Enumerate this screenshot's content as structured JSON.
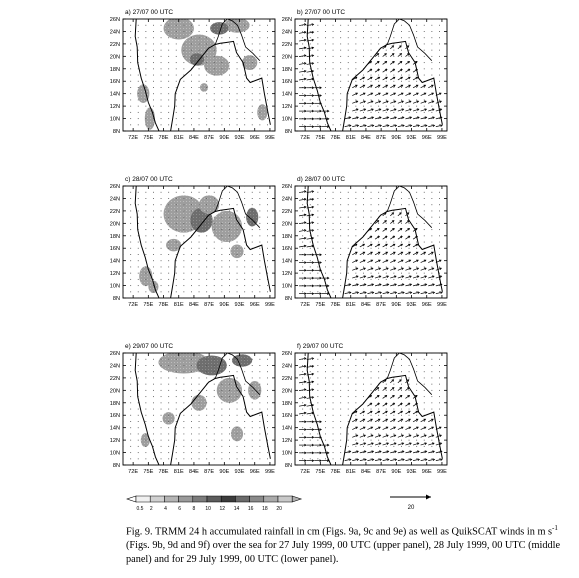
{
  "panels": [
    {
      "label": "a) 27/07 00 UTC",
      "type": "rain"
    },
    {
      "label": "b) 27/07 00 UTC",
      "type": "wind"
    },
    {
      "label": "c) 28/07 00 UTC",
      "type": "rain"
    },
    {
      "label": "d) 28/07 00 UTC",
      "type": "wind"
    },
    {
      "label": "e) 29/07 00 UTC",
      "type": "rain"
    },
    {
      "label": "f) 29/07 00 UTC",
      "type": "wind"
    }
  ],
  "axes": {
    "lat_ticks": [
      "8N",
      "10N",
      "12N",
      "14N",
      "16N",
      "18N",
      "20N",
      "22N",
      "24N",
      "26N"
    ],
    "lon_ticks": [
      "72E",
      "75E",
      "78E",
      "81E",
      "84E",
      "87E",
      "90E",
      "93E",
      "96E",
      "99E"
    ]
  },
  "colorbar": {
    "labels": [
      "0.5",
      "2",
      "4",
      "6",
      "8",
      "10",
      "12",
      "14",
      "16",
      "18",
      "20"
    ],
    "colors": [
      "#f0f0f0",
      "#d0d0d0",
      "#b4b4b4",
      "#9a9a9a",
      "#7c7c7c",
      "#5c5c5c",
      "#3c3c3c",
      "#6a6a6a",
      "#8a8a8a",
      "#aaaaaa",
      "#c8c8c8"
    ]
  },
  "wind_key": {
    "label": "20"
  },
  "caption": {
    "part1": "Fig. 9. TRMM 24 h accumulated rainfall in cm (Figs. 9a, 9c and 9e) as well as QuikSCAT winds in m s",
    "sup": "-1",
    "part2": " (Figs. 9b, 9d and 9f) over the sea for 27 July 1999, 00 UTC (upper panel), 28 July 1999, 00 UTC (middle panel) and for 29 July 1999, 00 UTC (lower panel)."
  }
}
